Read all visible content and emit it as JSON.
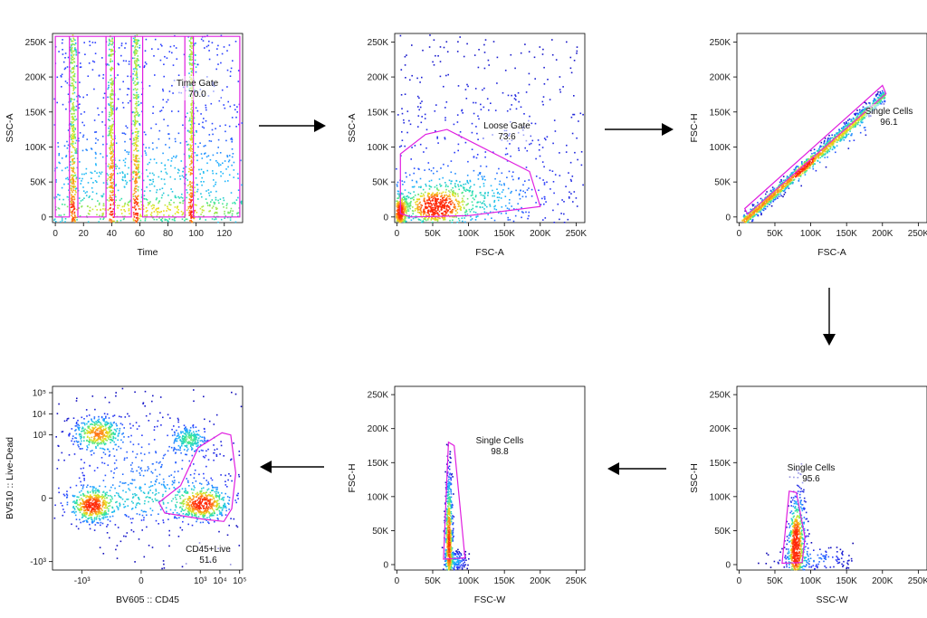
{
  "chart_data": [
    {
      "type": "scatter",
      "id": "time-gate",
      "xlabel": "Time",
      "ylabel": "SSC-A",
      "xlim": [
        -2,
        133
      ],
      "ylim": [
        -8000,
        262144
      ],
      "xticks": [
        0,
        20,
        40,
        60,
        80,
        100,
        120
      ],
      "xtick_labels": [
        "0",
        "20",
        "40",
        "60",
        "80",
        "100",
        "120"
      ],
      "yticks": [
        0,
        50000,
        100000,
        150000,
        200000,
        250000
      ],
      "ytick_labels": [
        "0",
        "50K",
        "100K",
        "150K",
        "200K",
        "250K"
      ],
      "gate": {
        "name": "Time Gate",
        "value": "70.0",
        "polygon": [
          [
            0,
            0
          ],
          [
            0,
            258000
          ],
          [
            131,
            258000
          ],
          [
            131,
            0
          ],
          [
            98,
            0
          ],
          [
            98,
            258000
          ],
          [
            92,
            258000
          ],
          [
            92,
            0
          ],
          [
            62,
            0
          ],
          [
            62,
            258000
          ],
          [
            54,
            258000
          ],
          [
            54,
            0
          ],
          [
            42,
            0
          ],
          [
            42,
            258000
          ],
          [
            36,
            258000
          ],
          [
            36,
            0
          ],
          [
            16,
            0
          ],
          [
            16,
            258000
          ],
          [
            10,
            258000
          ],
          [
            10,
            0
          ]
        ]
      }
    },
    {
      "type": "scatter",
      "id": "loose-gate",
      "xlabel": "FSC-A",
      "ylabel": "SSC-A",
      "xlim": [
        -3000,
        262144
      ],
      "ylim": [
        -8000,
        262144
      ],
      "xticks": [
        0,
        50000,
        100000,
        150000,
        200000,
        250000
      ],
      "xtick_labels": [
        "0",
        "50K",
        "100K",
        "150K",
        "200K",
        "250K"
      ],
      "yticks": [
        0,
        50000,
        100000,
        150000,
        200000,
        250000
      ],
      "ytick_labels": [
        "0",
        "50K",
        "100K",
        "150K",
        "200K",
        "250K"
      ],
      "gate": {
        "name": "Loose Gate",
        "value": "73.6",
        "polygon": [
          [
            5000,
            5000
          ],
          [
            5000,
            90000
          ],
          [
            40000,
            118000
          ],
          [
            70000,
            125000
          ],
          [
            185000,
            65000
          ],
          [
            200000,
            15000
          ],
          [
            100000,
            2000
          ],
          [
            20000,
            0
          ]
        ]
      }
    },
    {
      "type": "scatter",
      "id": "single-cells-fsc",
      "xlabel": "FSC-A",
      "ylabel": "FSC-H",
      "xlim": [
        -3000,
        262144
      ],
      "ylim": [
        -8000,
        262144
      ],
      "xticks": [
        0,
        50000,
        100000,
        150000,
        200000,
        250000
      ],
      "xtick_labels": [
        "0",
        "50K",
        "100K",
        "150K",
        "200K",
        "250K"
      ],
      "yticks": [
        0,
        50000,
        100000,
        150000,
        200000,
        250000
      ],
      "ytick_labels": [
        "0",
        "50K",
        "100K",
        "150K",
        "200K",
        "250K"
      ],
      "gate": {
        "name": "Single Cells",
        "value": "96.1",
        "polygon": [
          [
            8000,
            12000
          ],
          [
            200000,
            188000
          ],
          [
            205000,
            176000
          ],
          [
            12000,
            4000
          ]
        ]
      }
    },
    {
      "type": "scatter",
      "id": "single-cells-ssc",
      "xlabel": "SSC-W",
      "ylabel": "SSC-H",
      "xlim": [
        -3000,
        262144
      ],
      "ylim": [
        -8000,
        262144
      ],
      "xticks": [
        0,
        50000,
        100000,
        150000,
        200000,
        250000
      ],
      "xtick_labels": [
        "0",
        "50K",
        "100K",
        "150K",
        "200K",
        "250K"
      ],
      "yticks": [
        0,
        50000,
        100000,
        150000,
        200000,
        250000
      ],
      "ytick_labels": [
        "0",
        "50K",
        "100K",
        "150K",
        "200K",
        "250K"
      ],
      "gate": {
        "name": "Single Cells",
        "value": "95.6",
        "polygon": [
          [
            60000,
            2000
          ],
          [
            70000,
            108000
          ],
          [
            80000,
            106000
          ],
          [
            92000,
            40000
          ],
          [
            88000,
            3000
          ]
        ]
      }
    },
    {
      "type": "scatter",
      "id": "single-cells-fscw",
      "xlabel": "FSC-W",
      "ylabel": "FSC-H",
      "xlim": [
        -3000,
        262144
      ],
      "ylim": [
        -8000,
        262144
      ],
      "xticks": [
        0,
        50000,
        100000,
        150000,
        200000,
        250000
      ],
      "xtick_labels": [
        "0",
        "50K",
        "100K",
        "150K",
        "200K",
        "250K"
      ],
      "yticks": [
        0,
        50000,
        100000,
        150000,
        200000,
        250000
      ],
      "ytick_labels": [
        "0",
        "50K",
        "100K",
        "150K",
        "200K",
        "250K"
      ],
      "gate": {
        "name": "Single Cells",
        "value": "98.8",
        "polygon": [
          [
            65000,
            8000
          ],
          [
            72000,
            180000
          ],
          [
            80000,
            175000
          ],
          [
            95000,
            10000
          ]
        ]
      }
    },
    {
      "type": "scatter",
      "id": "cd45-live",
      "xlabel": "BV605 :: CD45",
      "ylabel": "BV510 :: Live-Dead",
      "scale": "biexponential",
      "xlim": [
        -4.5,
        5.15
      ],
      "ylim": [
        -3.4,
        5.3
      ],
      "xticks": [
        -3,
        0,
        3,
        4,
        5
      ],
      "xtick_labels": [
        "-10³",
        "0",
        "10³",
        "10⁴",
        "10⁵"
      ],
      "yticks": [
        -3,
        0,
        3,
        4,
        5
      ],
      "ytick_labels": [
        "-10³",
        "0",
        "10³",
        "10⁴",
        "10⁵"
      ],
      "gate": {
        "name": "CD45+Live",
        "value": "51.6",
        "polygon": [
          [
            2.0,
            0.6
          ],
          [
            2.9,
            2.4
          ],
          [
            4.1,
            3.1
          ],
          [
            4.55,
            3.0
          ],
          [
            4.8,
            1.2
          ],
          [
            4.6,
            -0.5
          ],
          [
            4.2,
            -1.1
          ],
          [
            3.2,
            -1.0
          ],
          [
            1.2,
            -0.7
          ],
          [
            0.9,
            -0.2
          ]
        ]
      }
    }
  ],
  "colors": {
    "gate": "#e01ee0",
    "arrow": "#000000",
    "density": [
      "#0b00a8",
      "#2a3cff",
      "#1cb4ff",
      "#2de6a0",
      "#e6e61a",
      "#ff8a1a",
      "#ff2a0a"
    ]
  }
}
